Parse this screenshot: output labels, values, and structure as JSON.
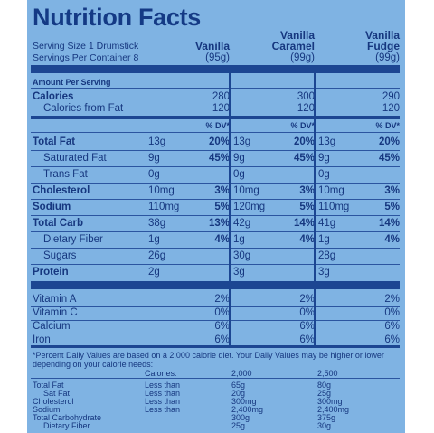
{
  "title": "Nutrition Facts",
  "serving_size": "Serving Size 1 Drumstick",
  "servings_per_container": "Servings Per Container 8",
  "amount_per_serving": "Amount Per Serving",
  "dv_label": "% DV*",
  "columns": [
    {
      "name_line1": "",
      "name_line2": "Vanilla",
      "weight": "(95g)"
    },
    {
      "name_line1": "Vanilla",
      "name_line2": "Caramel",
      "weight": "(99g)"
    },
    {
      "name_line1": "Vanilla",
      "name_line2": "Fudge",
      "weight": "(99g)"
    }
  ],
  "calories": {
    "label": "Calories",
    "values": [
      "280",
      "300",
      "290"
    ]
  },
  "calories_fat": {
    "label": "Calories from Fat",
    "values": [
      "120",
      "120",
      "120"
    ]
  },
  "rows": [
    {
      "label": "Total Fat",
      "bold": true,
      "indent": false,
      "values": [
        {
          "amt": "13g",
          "dv": "20%"
        },
        {
          "amt": "13g",
          "dv": "20%"
        },
        {
          "amt": "13g",
          "dv": "20%"
        }
      ]
    },
    {
      "label": "Saturated Fat",
      "bold": false,
      "indent": true,
      "values": [
        {
          "amt": "9g",
          "dv": "45%"
        },
        {
          "amt": "9g",
          "dv": "45%"
        },
        {
          "amt": "9g",
          "dv": "45%"
        }
      ]
    },
    {
      "label": "Trans Fat",
      "bold": false,
      "indent": true,
      "values": [
        {
          "amt": "0g",
          "dv": ""
        },
        {
          "amt": "0g",
          "dv": ""
        },
        {
          "amt": "0g",
          "dv": ""
        }
      ]
    },
    {
      "label": "Cholesterol",
      "bold": true,
      "indent": false,
      "values": [
        {
          "amt": "10mg",
          "dv": "3%"
        },
        {
          "amt": "10mg",
          "dv": "3%"
        },
        {
          "amt": "10mg",
          "dv": "3%"
        }
      ]
    },
    {
      "label": "Sodium",
      "bold": true,
      "indent": false,
      "values": [
        {
          "amt": "110mg",
          "dv": "5%"
        },
        {
          "amt": "120mg",
          "dv": "5%"
        },
        {
          "amt": "110mg",
          "dv": "5%"
        }
      ]
    },
    {
      "label": "Total Carb",
      "bold": true,
      "indent": false,
      "values": [
        {
          "amt": "38g",
          "dv": "13%"
        },
        {
          "amt": "42g",
          "dv": "14%"
        },
        {
          "amt": "41g",
          "dv": "14%"
        }
      ]
    },
    {
      "label": "Dietary Fiber",
      "bold": false,
      "indent": true,
      "values": [
        {
          "amt": "1g",
          "dv": "4%"
        },
        {
          "amt": "1g",
          "dv": "4%"
        },
        {
          "amt": "1g",
          "dv": "4%"
        }
      ]
    },
    {
      "label": "Sugars",
      "bold": false,
      "indent": true,
      "values": [
        {
          "amt": "26g",
          "dv": ""
        },
        {
          "amt": "30g",
          "dv": ""
        },
        {
          "amt": "28g",
          "dv": ""
        }
      ]
    },
    {
      "label": "Protein",
      "bold": true,
      "indent": false,
      "values": [
        {
          "amt": "2g",
          "dv": ""
        },
        {
          "amt": "3g",
          "dv": ""
        },
        {
          "amt": "3g",
          "dv": ""
        }
      ]
    }
  ],
  "vitamins": [
    {
      "label": "Vitamin A",
      "values": [
        "2%",
        "2%",
        "2%"
      ]
    },
    {
      "label": "Vitamin C",
      "values": [
        "0%",
        "0%",
        "0%"
      ]
    },
    {
      "label": "Calcium",
      "values": [
        "6%",
        "6%",
        "6%"
      ]
    },
    {
      "label": "Iron",
      "values": [
        "6%",
        "6%",
        "6%"
      ]
    }
  ],
  "footnote_line1": "*Percent Daily Values are based on a 2,000 calorie diet. Your Daily Values may be higher or lower",
  "footnote_line2": "depending on your calorie needs:",
  "footer_header": {
    "label": "Calories:",
    "c1": "2,000",
    "c2": "2,500"
  },
  "footer_rows": [
    {
      "label": "Total Fat",
      "qual": "Less than",
      "c1": "65g",
      "c2": "80g"
    },
    {
      "label": "Sat Fat",
      "qual": "Less than",
      "c1": "20g",
      "c2": "25g"
    },
    {
      "label": "Cholesterol",
      "qual": "Less than",
      "c1": "300mg",
      "c2": "300mg"
    },
    {
      "label": "Sodium",
      "qual": "Less than",
      "c1": "2,400mg",
      "c2": "2,400mg"
    },
    {
      "label": "Total Carbohydrate",
      "qual": "",
      "c1": "300g",
      "c2": "375g"
    },
    {
      "label": "Dietary Fiber",
      "qual": "",
      "c1": "25g",
      "c2": "30g"
    }
  ]
}
